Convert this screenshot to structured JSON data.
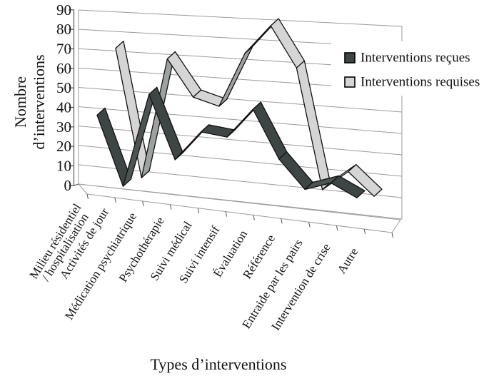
{
  "figure": {
    "background": "#ffffff"
  },
  "y_axis": {
    "title_lines": [
      "Nombre",
      "d’interventions"
    ],
    "ticks": [
      90,
      80,
      70,
      60,
      50,
      40,
      30,
      20,
      10,
      0
    ]
  },
  "x_axis": {
    "title": "Types d’interventions"
  },
  "colors": {
    "grid": "#9b9b9b",
    "axis": "#555555",
    "outline": "#111111"
  },
  "chart_data": {
    "type": "line",
    "style": "3d-ribbon",
    "title": "",
    "categories": [
      "Milieu résidentiel / hospitalisation",
      "Activités de jour",
      "Médication psychiatrique",
      "Psychothérapie",
      "Suivi médical",
      "Suivi intensif",
      "Évaluation",
      "Référence",
      "Entraide par les pairs",
      "Intervention de crise",
      "Autre"
    ],
    "series": [
      {
        "name": "Interventions reçues",
        "values": [
          37,
          1,
          49,
          16,
          31,
          29,
          44,
          19,
          4,
          8,
          1
        ],
        "color": "#3e4545",
        "color_ascending": "#4d5454"
      },
      {
        "name": "Interventions requises",
        "values": [
          70,
          4,
          66,
          47,
          43,
          71,
          86,
          65,
          3,
          13,
          1
        ],
        "color": "#d5d5d5",
        "color_ascending": "#9da1a1"
      }
    ],
    "ylim": [
      0,
      90
    ],
    "ytick_step": 10,
    "grid": true,
    "legend_position": "upper-right"
  }
}
